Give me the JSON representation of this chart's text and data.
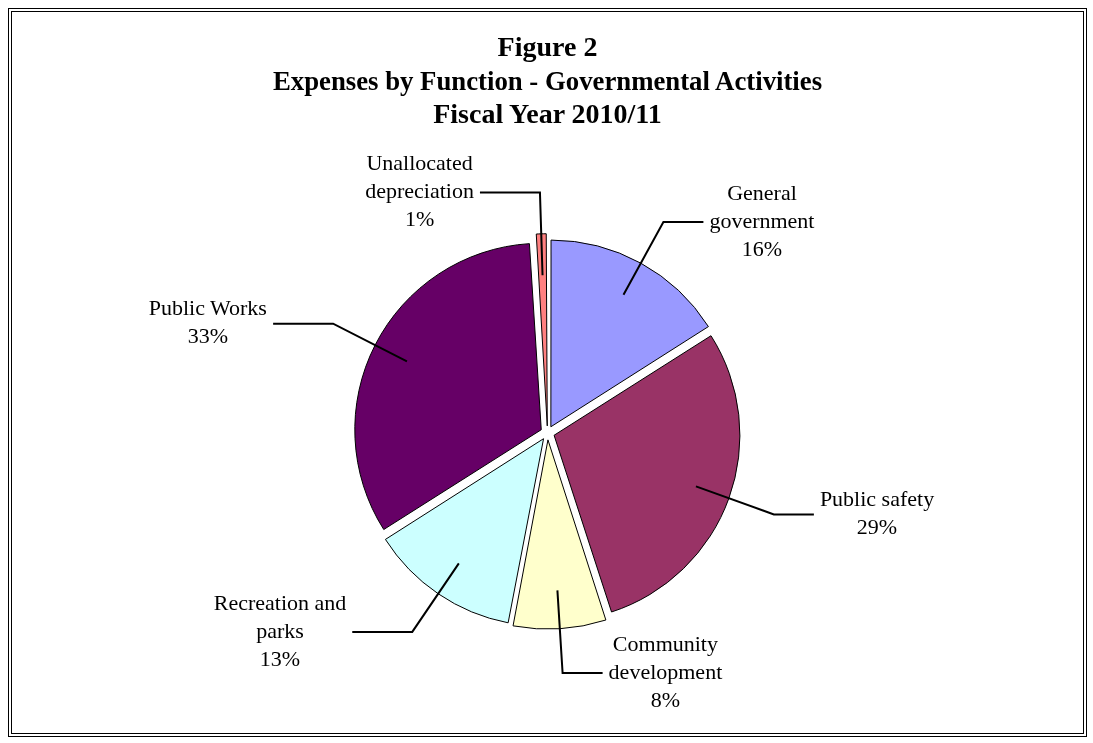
{
  "chart_data": {
    "type": "pie",
    "title": "Figure 2",
    "subtitle": "Expenses by Function - Governmental Activities\nFiscal Year 2010/11",
    "categories": [
      "General government",
      "Public safety",
      "Community development",
      "Recreation and parks",
      "Public Works",
      "Unallocated depreciation"
    ],
    "values": [
      16,
      29,
      8,
      13,
      33,
      1
    ],
    "value_labels": [
      "16%",
      "29%",
      "8%",
      "13%",
      "33%",
      "1%"
    ],
    "colors": [
      "#9999ff",
      "#993366",
      "#ffffcc",
      "#ccffff",
      "#660066",
      "#ff8080"
    ],
    "legend": false
  }
}
